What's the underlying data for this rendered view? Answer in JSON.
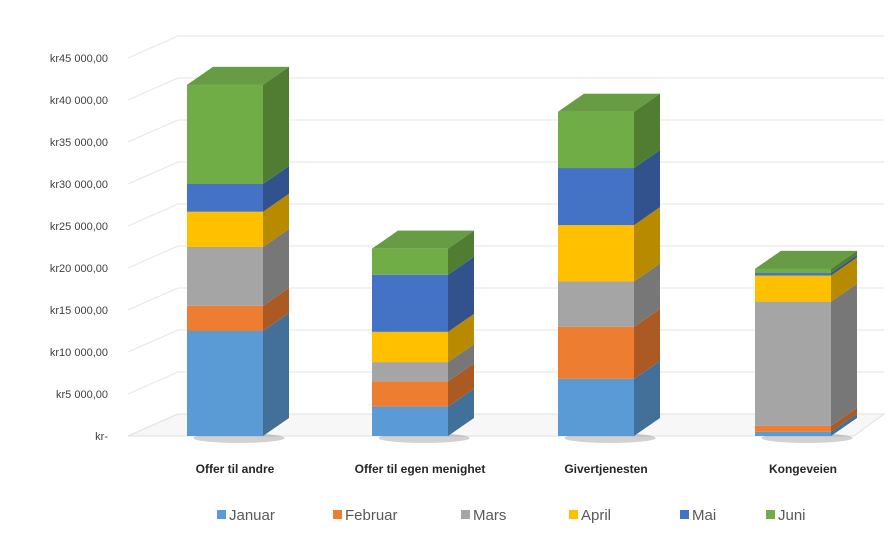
{
  "chart_data": {
    "type": "bar",
    "stacked": true,
    "style": "3d-column",
    "currency_prefix": "kr",
    "categories": [
      "Offer til andre",
      "Offer til egen menighet",
      "Givertjenesten",
      "Kongeveien"
    ],
    "series": [
      {
        "name": "Januar",
        "color": "#5B9BD5",
        "values": [
          12500,
          3500,
          6800,
          500
        ]
      },
      {
        "name": "Februar",
        "color": "#ED7D31",
        "values": [
          3000,
          3000,
          6200,
          700
        ]
      },
      {
        "name": "Mars",
        "color": "#A5A5A5",
        "values": [
          7000,
          2300,
          5400,
          14800
        ]
      },
      {
        "name": "April",
        "color": "#FFC000",
        "values": [
          4200,
          3600,
          6700,
          3100
        ]
      },
      {
        "name": "Mai",
        "color": "#4472C4",
        "values": [
          3300,
          6800,
          6800,
          300
        ]
      },
      {
        "name": "Juni",
        "color": "#70AD47",
        "values": [
          11800,
          3100,
          6700,
          500
        ]
      }
    ],
    "y_ticks": [
      "kr-",
      "kr5 000,00",
      "kr10 000,00",
      "kr15 000,00",
      "kr20 000,00",
      "kr25 000,00",
      "kr30 000,00",
      "kr35 000,00",
      "kr40 000,00",
      "kr45 000,00"
    ],
    "ylim": [
      0,
      45000
    ],
    "y_step": 5000,
    "grid": true,
    "legend_position": "bottom"
  }
}
